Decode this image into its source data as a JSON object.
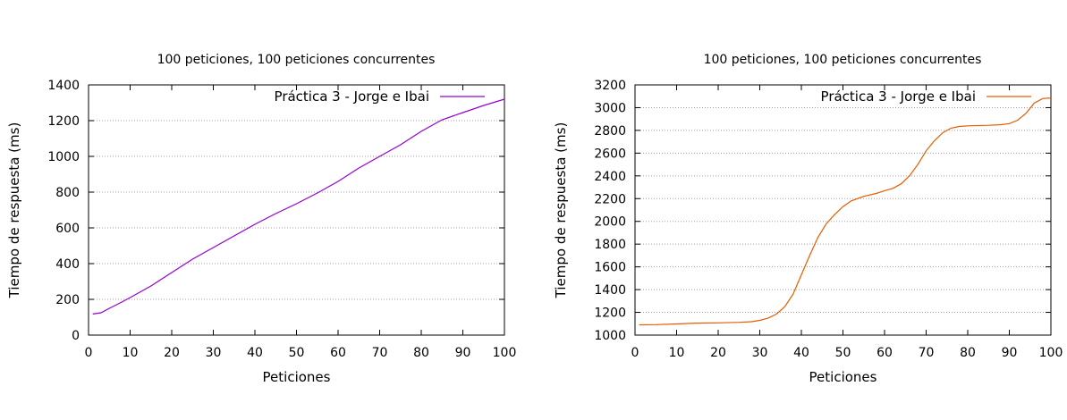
{
  "chart_data": [
    {
      "type": "line",
      "title": "100 peticiones, 100 peticiones concurrentes",
      "xlabel": "Peticiones",
      "ylabel": "Tiempo de respuesta (ms)",
      "xlim": [
        0,
        100
      ],
      "ylim": [
        0,
        1400
      ],
      "xticks": [
        0,
        10,
        20,
        30,
        40,
        50,
        60,
        70,
        80,
        90,
        100
      ],
      "yticks": [
        0,
        200,
        400,
        600,
        800,
        1000,
        1200,
        1400
      ],
      "grid": "horizontal dotted",
      "legend_position": "top-right",
      "series": [
        {
          "name": "Práctica 3 - Jorge e Ibai",
          "color": "#9400d3",
          "x": [
            1,
            3,
            5,
            8,
            10,
            15,
            20,
            25,
            30,
            35,
            40,
            45,
            50,
            55,
            60,
            65,
            70,
            75,
            80,
            85,
            90,
            95,
            100
          ],
          "y": [
            118,
            125,
            150,
            185,
            210,
            275,
            350,
            425,
            490,
            555,
            620,
            680,
            735,
            795,
            860,
            935,
            1000,
            1065,
            1140,
            1205,
            1245,
            1285,
            1320
          ]
        }
      ]
    },
    {
      "type": "line",
      "title": "100 peticiones, 100 peticiones concurrentes",
      "xlabel": "Peticiones",
      "ylabel": "Tiempo de respuesta (ms)",
      "xlim": [
        0,
        100
      ],
      "ylim": [
        1000,
        3200
      ],
      "xticks": [
        0,
        10,
        20,
        30,
        40,
        50,
        60,
        70,
        80,
        90,
        100
      ],
      "yticks": [
        1000,
        1200,
        1400,
        1600,
        1800,
        2000,
        2200,
        2400,
        2600,
        2800,
        3000,
        3200
      ],
      "grid": "horizontal dotted",
      "legend_position": "top-right",
      "series": [
        {
          "name": "Práctica 3 - Jorge e Ibai",
          "color": "#e65c00",
          "x": [
            1,
            5,
            10,
            15,
            20,
            25,
            28,
            30,
            32,
            34,
            36,
            38,
            40,
            42,
            44,
            46,
            48,
            50,
            52,
            55,
            58,
            60,
            62,
            64,
            66,
            68,
            70,
            72,
            74,
            76,
            78,
            80,
            85,
            88,
            90,
            92,
            94,
            96,
            98,
            100
          ],
          "y": [
            1090,
            1092,
            1098,
            1105,
            1108,
            1112,
            1118,
            1130,
            1150,
            1185,
            1250,
            1360,
            1530,
            1700,
            1860,
            1980,
            2060,
            2130,
            2180,
            2220,
            2245,
            2270,
            2290,
            2330,
            2400,
            2500,
            2620,
            2710,
            2780,
            2820,
            2835,
            2840,
            2845,
            2850,
            2860,
            2890,
            2950,
            3040,
            3080,
            3085
          ]
        }
      ]
    }
  ]
}
